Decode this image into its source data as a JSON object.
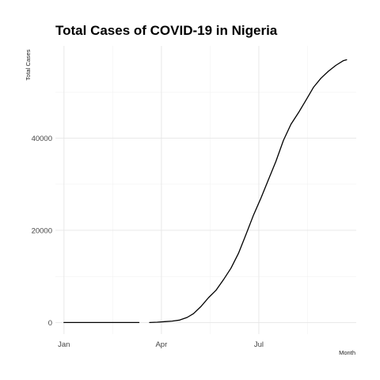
{
  "chart_data": {
    "type": "line",
    "title": "Total Cases of COVID-19 in Nigeria",
    "xlabel": "Month",
    "ylabel": "Total Cases",
    "x_ticks": [
      "Jan",
      "Apr",
      "Jul"
    ],
    "y_ticks": [
      "0",
      "20000",
      "40000"
    ],
    "grid": true,
    "legend": "none",
    "series": [
      {
        "segments": [
          [
            [
              "2020-01-01",
              0
            ],
            [
              "2020-02-15",
              0
            ],
            [
              "2020-03-11",
              0
            ]
          ],
          [
            [
              "2020-03-21",
              0
            ],
            [
              "2020-03-28",
              70
            ],
            [
              "2020-04-04",
              200
            ],
            [
              "2020-04-11",
              320
            ],
            [
              "2020-04-18",
              540
            ],
            [
              "2020-04-25",
              1100
            ],
            [
              "2020-05-01",
              1930
            ],
            [
              "2020-05-08",
              3500
            ],
            [
              "2020-05-15",
              5400
            ],
            [
              "2020-05-22",
              7000
            ],
            [
              "2020-05-29",
              9300
            ],
            [
              "2020-06-05",
              11800
            ],
            [
              "2020-06-12",
              15000
            ],
            [
              "2020-06-19",
              19100
            ],
            [
              "2020-06-26",
              23300
            ],
            [
              "2020-07-03",
              27000
            ],
            [
              "2020-07-10",
              31000
            ],
            [
              "2020-07-17",
              35000
            ],
            [
              "2020-07-24",
              39500
            ],
            [
              "2020-07-31",
              43000
            ],
            [
              "2020-08-07",
              45500
            ],
            [
              "2020-08-14",
              48200
            ],
            [
              "2020-08-21",
              51000
            ],
            [
              "2020-08-28",
              53000
            ],
            [
              "2020-09-04",
              54500
            ],
            [
              "2020-09-11",
              55800
            ],
            [
              "2020-09-18",
              56800
            ],
            [
              "2020-09-21",
              57000
            ]
          ]
        ]
      }
    ]
  }
}
